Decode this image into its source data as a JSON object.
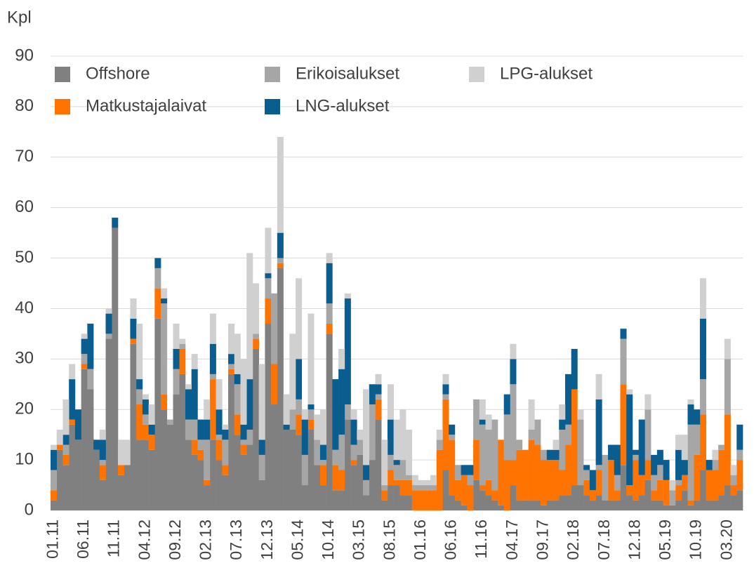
{
  "chart_data": {
    "type": "bar",
    "stacked": true,
    "y_axis_label": "Kpl",
    "categories": [
      "01.11",
      null,
      null,
      null,
      null,
      "06.11",
      null,
      null,
      null,
      null,
      "11.11",
      null,
      null,
      null,
      null,
      "04.12",
      null,
      null,
      null,
      null,
      "09.12",
      null,
      null,
      null,
      null,
      "02.13",
      null,
      null,
      null,
      null,
      "07.13",
      null,
      null,
      null,
      null,
      "12.13",
      null,
      null,
      null,
      null,
      "05.14",
      null,
      null,
      null,
      null,
      "10.14",
      null,
      null,
      null,
      null,
      "03.15",
      null,
      null,
      null,
      null,
      "08.15",
      null,
      null,
      null,
      null,
      "01.16",
      null,
      null,
      null,
      null,
      "06.16",
      null,
      null,
      null,
      null,
      "11.16",
      null,
      null,
      null,
      null,
      "04.17",
      null,
      null,
      null,
      null,
      "09.17",
      null,
      null,
      null,
      null,
      "02.18",
      null,
      null,
      null,
      null,
      "07.18",
      null,
      null,
      null,
      null,
      "12.18",
      null,
      null,
      null,
      null,
      "05.19",
      null,
      null,
      null,
      null,
      "10.19",
      null,
      null,
      null,
      null,
      "03.20",
      null,
      null
    ],
    "series": [
      {
        "name": "Offshore",
        "color": "#808080",
        "values": [
          2,
          12,
          9,
          17,
          14,
          28,
          24,
          12,
          6,
          34,
          56,
          7,
          9,
          33,
          14,
          14,
          12,
          38,
          20,
          17,
          23,
          27,
          14,
          11,
          10,
          5,
          14,
          10,
          7,
          27,
          15,
          11,
          13,
          32,
          6,
          37,
          21,
          48,
          16,
          16,
          15,
          5,
          16,
          9,
          5,
          35,
          4,
          4,
          18,
          9,
          11,
          3,
          10,
          18,
          2,
          5,
          5,
          3,
          3,
          0,
          0,
          0,
          0,
          0,
          8,
          3,
          2,
          1,
          0,
          6,
          4,
          3,
          2,
          1,
          0,
          5,
          2,
          2,
          2,
          2,
          1,
          2,
          2,
          3,
          3,
          5,
          5,
          3,
          2,
          3,
          2,
          2,
          2,
          9,
          3,
          2,
          3,
          6,
          2,
          2,
          1,
          1,
          2,
          4,
          1,
          2,
          8,
          2,
          2,
          3,
          5,
          3,
          4
        ]
      },
      {
        "name": "Matkustajalaivat",
        "color": "#ff7300",
        "values": [
          2,
          1,
          2,
          1,
          0,
          1,
          0,
          0,
          3,
          0,
          0,
          2,
          0,
          1,
          7,
          3,
          3,
          6,
          3,
          0,
          0,
          5,
          0,
          3,
          2,
          1,
          12,
          4,
          2,
          1,
          4,
          2,
          0,
          2,
          0,
          5,
          8,
          1,
          0,
          0,
          4,
          0,
          2,
          0,
          4,
          2,
          5,
          4,
          0,
          1,
          0,
          0,
          0,
          4,
          2,
          3,
          1,
          3,
          3,
          4,
          4,
          4,
          4,
          12,
          14,
          11,
          4,
          6,
          5,
          8,
          1,
          3,
          2,
          13,
          10,
          5,
          10,
          10,
          12,
          11,
          9,
          8,
          8,
          5,
          10,
          19,
          0,
          3,
          2,
          5,
          0,
          8,
          2,
          16,
          2,
          8,
          4,
          4,
          2,
          4,
          5,
          0,
          3,
          3,
          1,
          9,
          11,
          6,
          6,
          9,
          14,
          2,
          6
        ]
      },
      {
        "name": "Erikoisalukset",
        "color": "#a6a6a6",
        "values": [
          4,
          0,
          2,
          0,
          0,
          2,
          4,
          0,
          1,
          1,
          0,
          0,
          0,
          0,
          3,
          2,
          0,
          4,
          18,
          1,
          5,
          1,
          4,
          4,
          2,
          8,
          1,
          1,
          5,
          1,
          6,
          1,
          3,
          1,
          5,
          4,
          14,
          1,
          0,
          4,
          3,
          6,
          2,
          5,
          1,
          4,
          3,
          7,
          3,
          3,
          3,
          3,
          11,
          1,
          1,
          3,
          3,
          4,
          1,
          1,
          1,
          1,
          1,
          2,
          1,
          1,
          3,
          0,
          2,
          8,
          12,
          10,
          14,
          0,
          9,
          15,
          2,
          0,
          2,
          5,
          2,
          0,
          0,
          8,
          4,
          0,
          13,
          2,
          0,
          1,
          9,
          0,
          3,
          9,
          0,
          1,
          0,
          10,
          3,
          3,
          0,
          3,
          1,
          0,
          15,
          6,
          7,
          0,
          2,
          1,
          11,
          2,
          2
        ]
      },
      {
        "name": "LNG-alukset",
        "color": "#0a5e8f",
        "values": [
          4,
          0,
          2,
          8,
          6,
          3,
          9,
          2,
          4,
          4,
          2,
          0,
          0,
          4,
          2,
          3,
          2,
          2,
          1,
          0,
          4,
          0,
          6,
          10,
          4,
          4,
          6,
          5,
          2,
          2,
          2,
          3,
          10,
          0,
          3,
          1,
          0,
          5,
          1,
          0,
          8,
          7,
          1,
          0,
          3,
          8,
          14,
          13,
          21,
          5,
          0,
          3,
          4,
          2,
          0,
          7,
          1,
          0,
          0,
          0,
          0,
          0,
          0,
          0,
          2,
          2,
          0,
          2,
          2,
          0,
          1,
          0,
          0,
          0,
          4,
          5,
          0,
          0,
          0,
          0,
          0,
          2,
          2,
          2,
          10,
          8,
          0,
          1,
          4,
          13,
          0,
          3,
          6,
          2,
          18,
          1,
          11,
          0,
          4,
          3,
          4,
          0,
          6,
          3,
          4,
          3,
          12,
          2,
          0,
          0,
          0,
          0,
          5
        ]
      },
      {
        "name": "LPG-alukset",
        "color": "#d0d0d0",
        "values": [
          1,
          3,
          7,
          3,
          0,
          1,
          0,
          0,
          2,
          1,
          0,
          5,
          5,
          4,
          11,
          1,
          4,
          0,
          2,
          0,
          5,
          1,
          1,
          3,
          0,
          4,
          6,
          6,
          1,
          6,
          8,
          13,
          25,
          10,
          15,
          9,
          0,
          19,
          6,
          15,
          16,
          2,
          18,
          5,
          7,
          2,
          0,
          4,
          1,
          2,
          2,
          15,
          0,
          2,
          9,
          7,
          8,
          10,
          9,
          2,
          1,
          1,
          2,
          2,
          2,
          0,
          0,
          0,
          0,
          0,
          4,
          3,
          0,
          0,
          0,
          3,
          0,
          0,
          6,
          0,
          0,
          0,
          2,
          3,
          0,
          0,
          2,
          0,
          0,
          5,
          0,
          0,
          0,
          0,
          1,
          0,
          0,
          3,
          0,
          0,
          0,
          2,
          3,
          5,
          1,
          0,
          8,
          0,
          2,
          0,
          4,
          2,
          0
        ]
      }
    ],
    "ylim": [
      0,
      90
    ],
    "yticks": [
      0,
      10,
      20,
      30,
      40,
      50,
      60,
      70,
      80,
      90
    ],
    "grid": true
  }
}
